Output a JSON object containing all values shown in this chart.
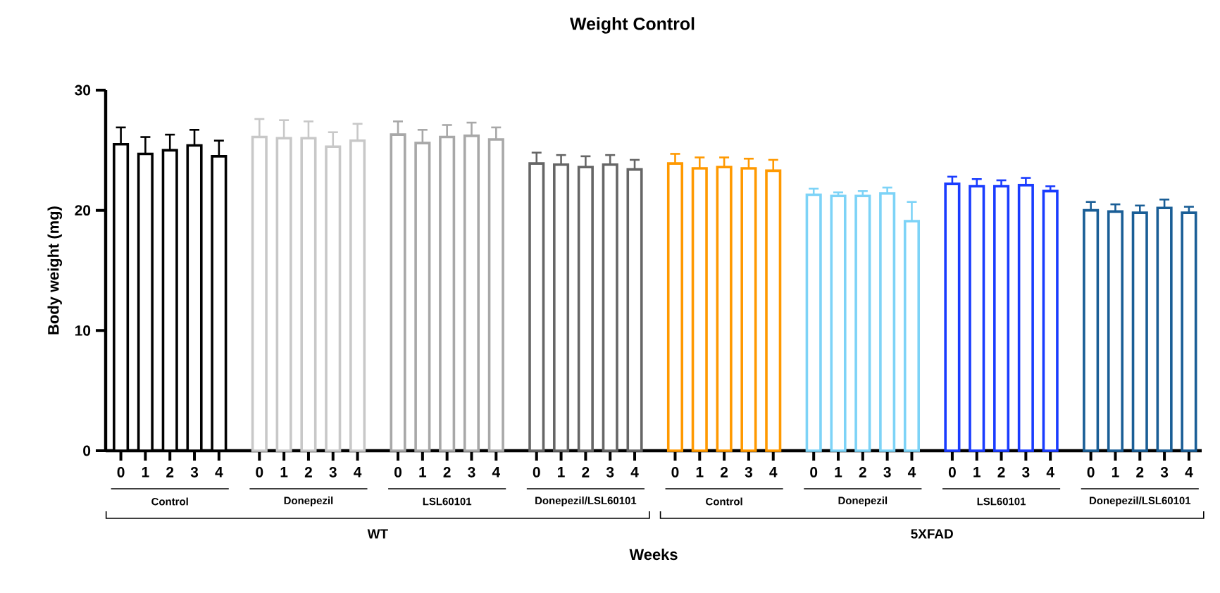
{
  "chart_data": {
    "type": "bar",
    "title": "Weight Control",
    "xlabel": "Weeks",
    "ylabel": "Body weight (mg)",
    "categories": [
      "0",
      "1",
      "2",
      "3",
      "4",
      "0",
      "1",
      "2",
      "3",
      "4",
      "0",
      "1",
      "2",
      "3",
      "4",
      "0",
      "1",
      "2",
      "3",
      "4",
      "0",
      "1",
      "2",
      "3",
      "4",
      "0",
      "1",
      "2",
      "3",
      "4",
      "0",
      "1",
      "2",
      "3",
      "4",
      "0",
      "1",
      "2",
      "3",
      "4"
    ],
    "values": [
      25.5,
      24.7,
      25.0,
      25.4,
      24.5,
      26.1,
      26.0,
      26.0,
      25.3,
      25.8,
      26.3,
      25.6,
      26.1,
      26.2,
      25.9,
      23.9,
      23.8,
      23.6,
      23.8,
      23.4,
      23.9,
      23.5,
      23.6,
      23.5,
      23.3,
      21.3,
      21.2,
      21.2,
      21.4,
      19.1,
      22.2,
      22.0,
      22.0,
      22.1,
      21.6,
      20.0,
      19.9,
      19.8,
      20.2,
      19.8
    ],
    "errors": [
      1.4,
      1.4,
      1.3,
      1.3,
      1.3,
      1.5,
      1.5,
      1.4,
      1.2,
      1.4,
      1.1,
      1.1,
      1.0,
      1.1,
      1.0,
      0.9,
      0.8,
      0.9,
      0.8,
      0.8,
      0.8,
      0.9,
      0.8,
      0.8,
      0.9,
      0.5,
      0.3,
      0.4,
      0.5,
      1.6,
      0.6,
      0.6,
      0.5,
      0.6,
      0.4,
      0.7,
      0.6,
      0.6,
      0.7,
      0.5
    ],
    "colors": [
      "#000000",
      "#000000",
      "#000000",
      "#000000",
      "#000000",
      "#c8c8c8",
      "#c8c8c8",
      "#c8c8c8",
      "#c8c8c8",
      "#c8c8c8",
      "#a8a8a8",
      "#a8a8a8",
      "#a8a8a8",
      "#a8a8a8",
      "#a8a8a8",
      "#666666",
      "#666666",
      "#666666",
      "#666666",
      "#666666",
      "#ff9900",
      "#ff9900",
      "#ff9900",
      "#ff9900",
      "#ff9900",
      "#7dd3f7",
      "#7dd3f7",
      "#7dd3f7",
      "#7dd3f7",
      "#7dd3f7",
      "#1a3cff",
      "#1a3cff",
      "#1a3cff",
      "#1a3cff",
      "#1a3cff",
      "#1a5e96",
      "#1a5e96",
      "#1a5e96",
      "#1a5e96",
      "#1a5e96"
    ],
    "ylim": [
      0,
      30
    ],
    "yticks": [
      0,
      10,
      20,
      30
    ],
    "annotations": [
      "Control",
      "Donepezil",
      "LSL60101",
      "Donepezil/LSL60101",
      "Control",
      "Donepezil",
      "LSL60101",
      "Donepezil/LSL60101",
      "WT",
      "5XFAD"
    ]
  }
}
